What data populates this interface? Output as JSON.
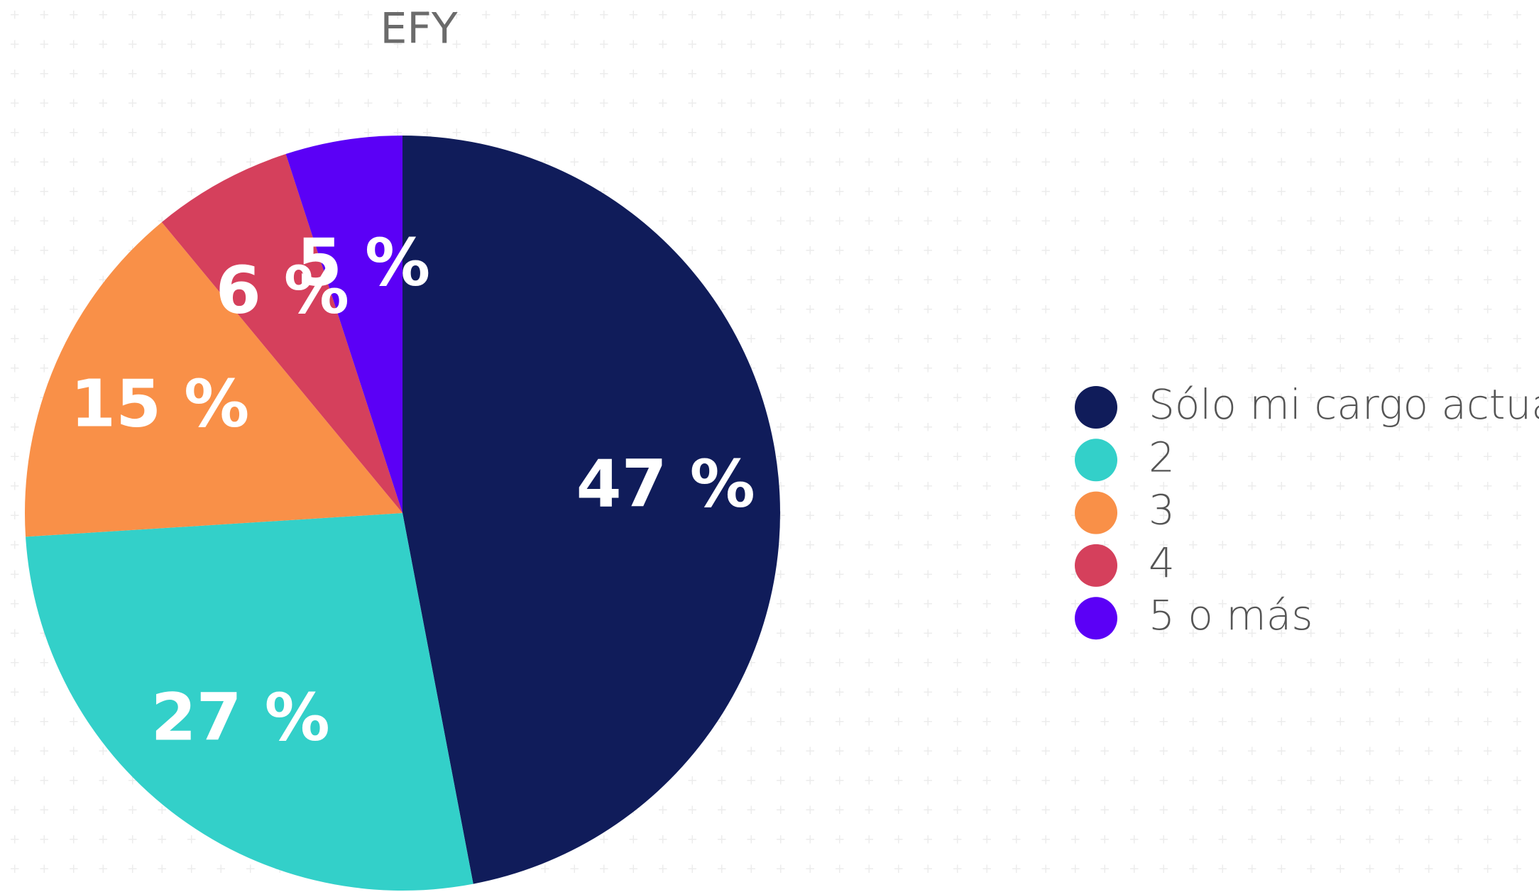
{
  "chart_data": {
    "type": "pie",
    "title": "EFY",
    "categories": [
      "Sólo mi cargo actual",
      "2",
      "3",
      "4",
      "5 o más"
    ],
    "values": [
      47,
      27,
      15,
      6,
      5
    ],
    "value_labels": [
      "47 %",
      "27 %",
      "15 %",
      "6 %",
      "5 %"
    ],
    "colors": [
      "#101c5a",
      "#33d0c9",
      "#f99048",
      "#d5405c",
      "#5b00f6"
    ],
    "legend": "right"
  }
}
